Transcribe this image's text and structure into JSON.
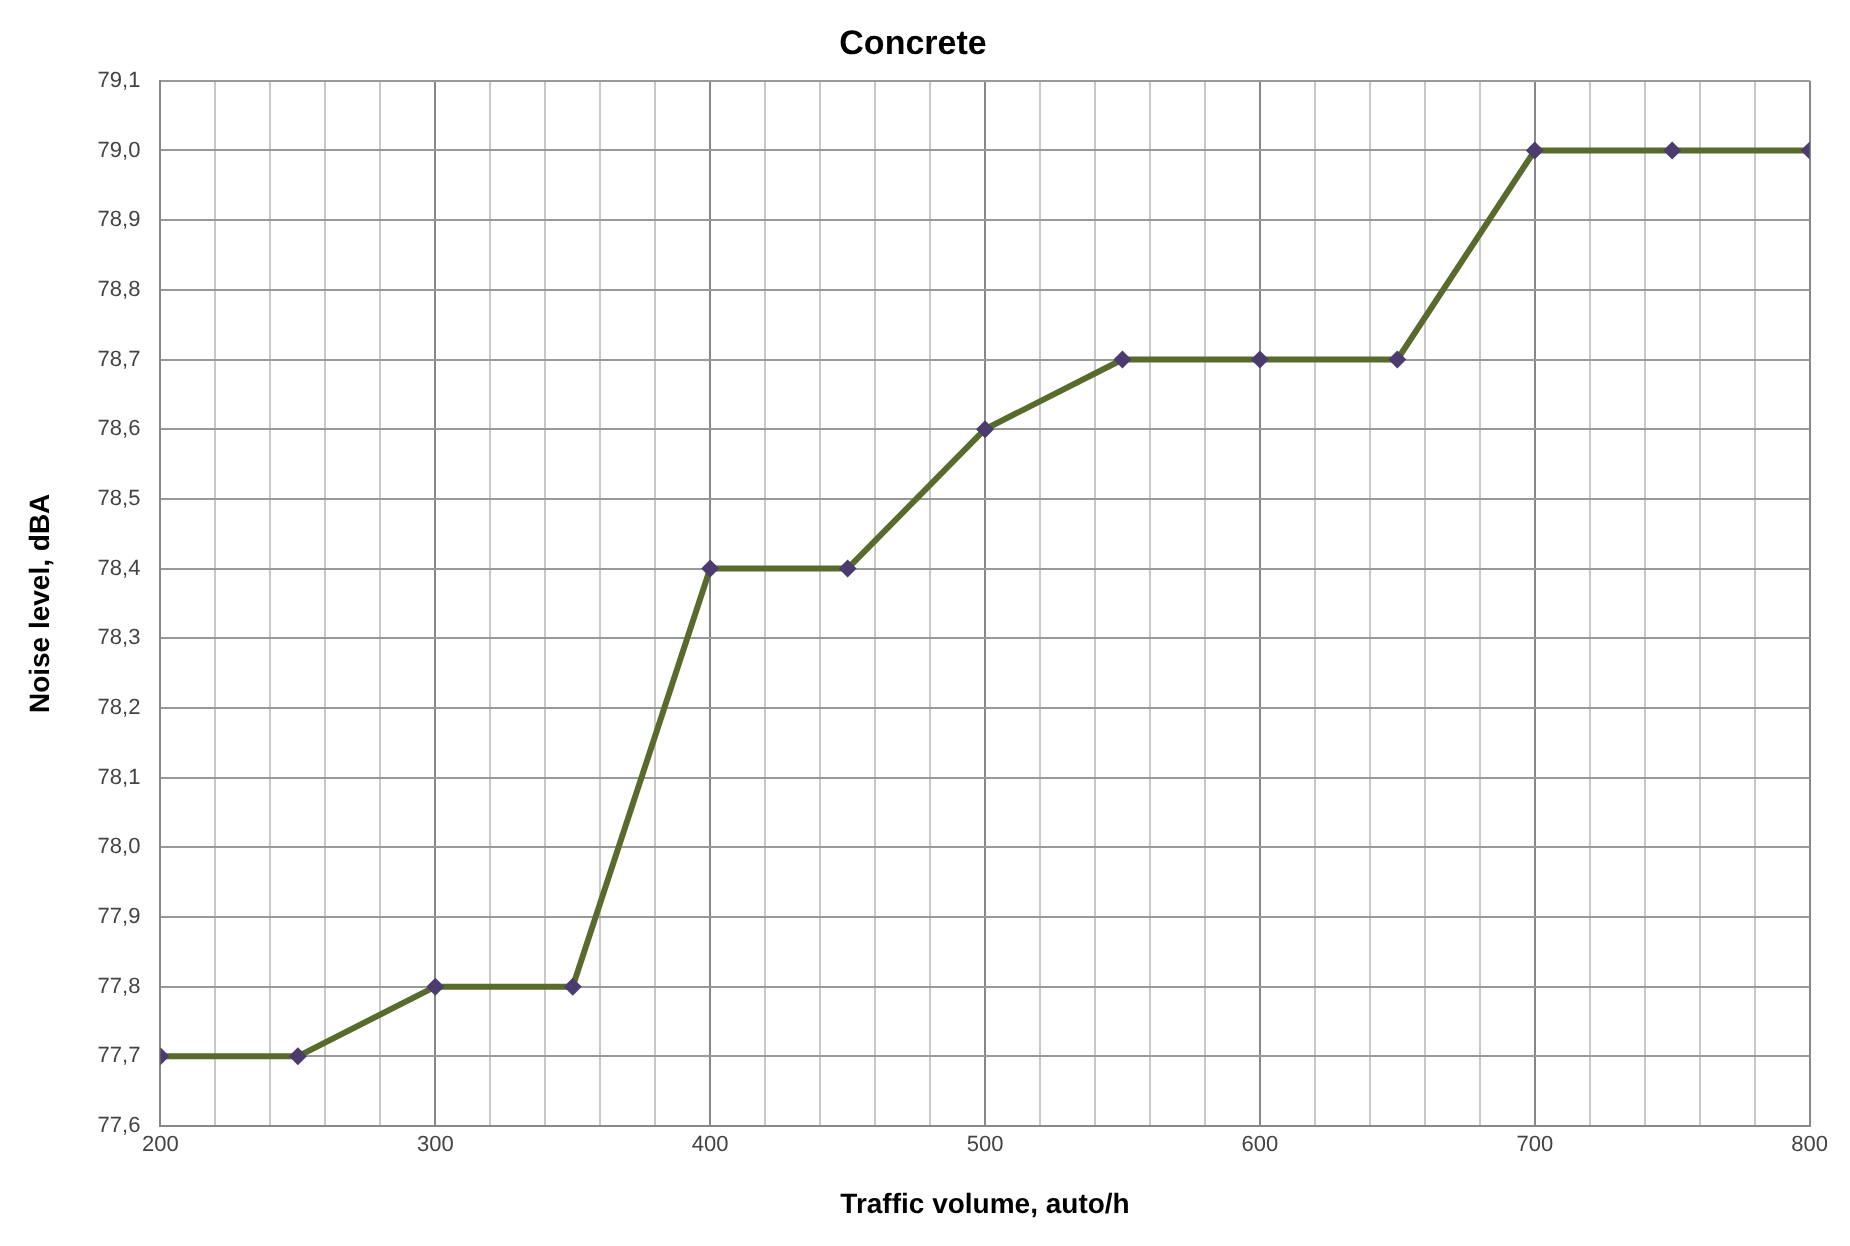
{
  "chart_data": {
    "type": "line",
    "title": "Concrete",
    "xlabel": "Traffic volume, auto/h",
    "ylabel": "Noise level, dBA",
    "x": [
      200,
      250,
      300,
      350,
      400,
      450,
      500,
      550,
      600,
      650,
      700,
      750,
      800
    ],
    "series": [
      {
        "color": "#596b2c",
        "values": [
          77.7,
          77.7,
          77.8,
          77.8,
          78.4,
          78.4,
          78.6,
          78.7,
          78.7,
          78.7,
          79.0,
          79.0,
          79.0
        ]
      }
    ],
    "xlim": [
      200,
      800
    ],
    "xticks": [
      200,
      {
        "value": 220,
        "label": null
      },
      {
        "value": 240,
        "label": null
      },
      {
        "value": 260,
        "label": null
      },
      {
        "value": 280,
        "label": null
      },
      300,
      {
        "value": 320,
        "label": null
      },
      {
        "value": 340,
        "label": null
      },
      {
        "value": 360,
        "label": null
      },
      {
        "value": 380,
        "label": null
      },
      400,
      {
        "value": 420,
        "label": null
      },
      {
        "value": 440,
        "label": null
      },
      {
        "value": 460,
        "label": null
      },
      {
        "value": 480,
        "label": null
      },
      500,
      {
        "value": 520,
        "label": null
      },
      {
        "value": 540,
        "label": null
      },
      {
        "value": 560,
        "label": null
      },
      {
        "value": 580,
        "label": null
      },
      600,
      {
        "value": 620,
        "label": null
      },
      {
        "value": 640,
        "label": null
      },
      {
        "value": 660,
        "label": null
      },
      {
        "value": 680,
        "label": null
      },
      700,
      {
        "value": 720,
        "label": null
      },
      {
        "value": 740,
        "label": null
      },
      {
        "value": 760,
        "label": null
      },
      {
        "value": 780,
        "label": null
      },
      800
    ],
    "ylim": [
      77.6,
      79.1
    ],
    "yticks": [
      {
        "value": 77.6,
        "label": "77,6"
      },
      {
        "value": 77.7,
        "label": "77,7"
      },
      {
        "value": 77.8,
        "label": "77,8"
      },
      {
        "value": 77.9,
        "label": "77,9"
      },
      {
        "value": 78.0,
        "label": "78,0"
      },
      {
        "value": 78.1,
        "label": "78,1"
      },
      {
        "value": 78.2,
        "label": "78,2"
      },
      {
        "value": 78.3,
        "label": "78,3"
      },
      {
        "value": 78.4,
        "label": "78,4"
      },
      {
        "value": 78.5,
        "label": "78,5"
      },
      {
        "value": 78.6,
        "label": "78,6"
      },
      {
        "value": 78.7,
        "label": "78,7"
      },
      {
        "value": 78.8,
        "label": "78,8"
      },
      {
        "value": 78.9,
        "label": "78,9"
      },
      {
        "value": 79.0,
        "label": "79,0"
      },
      {
        "value": 79.1,
        "label": "79,1"
      }
    ],
    "grid": true,
    "marker": "diamond",
    "line_style": "solid"
  }
}
